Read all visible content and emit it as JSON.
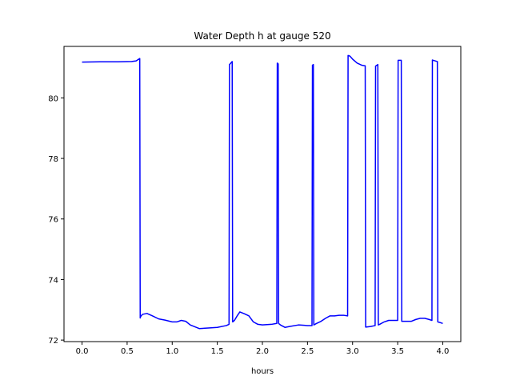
{
  "chart_data": {
    "type": "line",
    "title": "Water Depth h at gauge 520",
    "xlabel": "hours",
    "ylabel": "",
    "xlim": [
      -0.2,
      4.2
    ],
    "ylim": [
      71.95,
      81.7
    ],
    "xticks": [
      0.0,
      0.5,
      1.0,
      1.5,
      2.0,
      2.5,
      3.0,
      3.5,
      4.0
    ],
    "xtick_labels": [
      "0.0",
      "0.5",
      "1.0",
      "1.5",
      "2.0",
      "2.5",
      "3.0",
      "3.5",
      "4.0"
    ],
    "yticks": [
      72,
      74,
      76,
      78,
      80
    ],
    "ytick_labels": [
      "72",
      "74",
      "76",
      "78",
      "80"
    ],
    "grid": false,
    "series": [
      {
        "color": "#0000ff",
        "x": [
          0.0,
          0.2,
          0.4,
          0.55,
          0.6,
          0.64,
          0.645,
          0.65,
          0.67,
          0.72,
          0.78,
          0.85,
          0.92,
          1.0,
          1.05,
          1.1,
          1.15,
          1.2,
          1.3,
          1.4,
          1.5,
          1.6,
          1.63,
          1.635,
          1.665,
          1.67,
          1.69,
          1.72,
          1.75,
          1.8,
          1.85,
          1.9,
          1.95,
          2.0,
          2.1,
          2.16,
          2.165,
          2.175,
          2.18,
          2.2,
          2.25,
          2.3,
          2.4,
          2.5,
          2.55,
          2.555,
          2.565,
          2.57,
          2.6,
          2.65,
          2.7,
          2.75,
          2.8,
          2.85,
          2.9,
          2.945,
          2.95,
          2.97,
          3.0,
          3.05,
          3.1,
          3.14,
          3.145,
          3.2,
          3.25,
          3.255,
          3.28,
          3.285,
          3.3,
          3.35,
          3.4,
          3.45,
          3.5,
          3.505,
          3.54,
          3.545,
          3.6,
          3.65,
          3.7,
          3.75,
          3.8,
          3.85,
          3.88,
          3.885,
          3.94,
          3.945,
          3.97,
          4.0
        ],
        "y": [
          81.18,
          81.19,
          81.19,
          81.2,
          81.22,
          81.3,
          72.73,
          72.78,
          72.85,
          72.88,
          72.8,
          72.7,
          72.66,
          72.6,
          72.6,
          72.65,
          72.62,
          72.5,
          72.38,
          72.4,
          72.42,
          72.48,
          72.52,
          81.1,
          81.2,
          72.6,
          72.65,
          72.8,
          72.93,
          72.87,
          72.8,
          72.6,
          72.52,
          72.5,
          72.52,
          72.55,
          81.15,
          81.12,
          72.55,
          72.5,
          72.42,
          72.45,
          72.5,
          72.48,
          72.48,
          81.08,
          81.1,
          72.5,
          72.55,
          72.62,
          72.72,
          72.8,
          72.8,
          72.82,
          72.82,
          72.8,
          81.4,
          81.38,
          81.28,
          81.15,
          81.08,
          81.06,
          72.43,
          72.45,
          72.48,
          81.05,
          81.1,
          72.5,
          72.52,
          72.6,
          72.65,
          72.65,
          72.65,
          81.24,
          81.24,
          72.62,
          72.62,
          72.62,
          72.68,
          72.72,
          72.72,
          72.68,
          72.65,
          81.25,
          81.2,
          72.6,
          72.58,
          72.55
        ]
      }
    ]
  }
}
